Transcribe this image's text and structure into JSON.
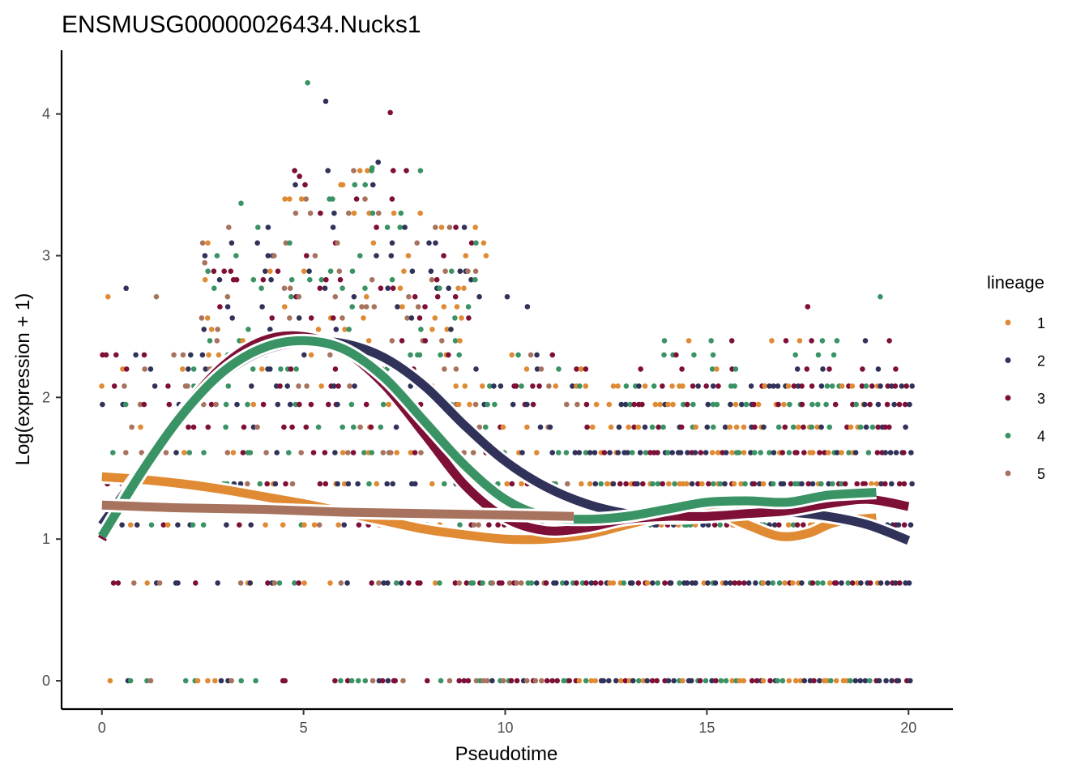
{
  "chart_data": {
    "type": "scatter",
    "title": "ENSMUSG00000026434.Nucks1",
    "xlabel": "Pseudotime",
    "ylabel": "Log(expression + 1)",
    "xlim": [
      -1,
      21.1
    ],
    "ylim": [
      -0.2,
      4.45
    ],
    "xticks": [
      0,
      5,
      10,
      15,
      20
    ],
    "yticks": [
      0,
      1,
      2,
      3,
      4
    ],
    "grid": false,
    "legend": {
      "title": "lineage",
      "position": "right",
      "entries": [
        {
          "label": "1",
          "color": "#E08A33"
        },
        {
          "label": "2",
          "color": "#31325A"
        },
        {
          "label": "3",
          "color": "#7E0F36"
        },
        {
          "label": "4",
          "color": "#3A9364"
        },
        {
          "label": "5",
          "color": "#A7735E"
        }
      ]
    },
    "point_levels": [
      0,
      0.69,
      1.1,
      1.39,
      1.61,
      1.79,
      1.95,
      2.08,
      2.2,
      2.3,
      2.4,
      2.48,
      2.56,
      2.64,
      2.71,
      2.77,
      2.83,
      2.89,
      2.94,
      3.0,
      3.09,
      3.2,
      3.3,
      3.4,
      3.5,
      3.6
    ],
    "outlier_points": [
      {
        "x": 5.1,
        "y": 4.22,
        "lineage": "4"
      },
      {
        "x": 5.55,
        "y": 4.09,
        "lineage": "2"
      },
      {
        "x": 7.15,
        "y": 4.01,
        "lineage": "3"
      },
      {
        "x": 6.85,
        "y": 3.66,
        "lineage": "2"
      },
      {
        "x": 6.7,
        "y": 3.62,
        "lineage": "4"
      },
      {
        "x": 4.9,
        "y": 3.56,
        "lineage": "3"
      },
      {
        "x": 3.45,
        "y": 3.37,
        "lineage": "4"
      },
      {
        "x": 2.55,
        "y": 2.95,
        "lineage": "5"
      },
      {
        "x": 19.3,
        "y": 2.71,
        "lineage": "4"
      },
      {
        "x": 17.5,
        "y": 2.64,
        "lineage": "3"
      },
      {
        "x": 0.6,
        "y": 2.77,
        "lineage": "2"
      },
      {
        "x": 1.35,
        "y": 2.71,
        "lineage": "5"
      },
      {
        "x": 0.15,
        "y": 2.71,
        "lineage": "1"
      },
      {
        "x": 10.05,
        "y": 2.71,
        "lineage": "2"
      },
      {
        "x": 10.55,
        "y": 2.64,
        "lineage": "2"
      }
    ],
    "series": [
      {
        "name": "1",
        "color": "#E08A33",
        "x": [
          0,
          1,
          2,
          3,
          4,
          5,
          6,
          7,
          8,
          9,
          10,
          11,
          12,
          13,
          14,
          15,
          16,
          16.8,
          17.5,
          18.2,
          19.2
        ],
        "y": [
          1.44,
          1.42,
          1.39,
          1.35,
          1.3,
          1.25,
          1.19,
          1.13,
          1.07,
          1.03,
          1.0,
          1.0,
          1.03,
          1.1,
          1.17,
          1.21,
          1.1,
          1.02,
          1.04,
          1.12,
          1.15
        ]
      },
      {
        "name": "2",
        "color": "#31325A",
        "x": [
          0,
          1,
          2,
          3,
          4,
          5,
          6,
          7,
          8,
          9,
          10,
          11,
          12,
          13,
          14,
          15,
          16,
          17,
          18,
          19,
          20
        ],
        "y": [
          1.1,
          1.5,
          1.88,
          2.16,
          2.33,
          2.39,
          2.38,
          2.28,
          2.08,
          1.8,
          1.55,
          1.37,
          1.25,
          1.18,
          1.15,
          1.16,
          1.19,
          1.19,
          1.16,
          1.1,
          0.99
        ]
      },
      {
        "name": "3",
        "color": "#7E0F36",
        "x": [
          0,
          1,
          2,
          3,
          4,
          5,
          6,
          7,
          8,
          9,
          10,
          11,
          12,
          13,
          14,
          15,
          16,
          17,
          18,
          19,
          20
        ],
        "y": [
          1.0,
          1.5,
          1.9,
          2.22,
          2.4,
          2.43,
          2.33,
          2.09,
          1.74,
          1.38,
          1.15,
          1.06,
          1.08,
          1.14,
          1.16,
          1.16,
          1.18,
          1.2,
          1.25,
          1.28,
          1.23
        ]
      },
      {
        "name": "4",
        "color": "#3A9364",
        "x": [
          0,
          1,
          2,
          3,
          4,
          5,
          6,
          7,
          8,
          9,
          10,
          11,
          12,
          13,
          14,
          15,
          16,
          17,
          18,
          19.2
        ],
        "y": [
          1.02,
          1.48,
          1.88,
          2.18,
          2.35,
          2.4,
          2.34,
          2.14,
          1.83,
          1.52,
          1.28,
          1.16,
          1.14,
          1.16,
          1.21,
          1.26,
          1.27,
          1.26,
          1.31,
          1.33
        ]
      },
      {
        "name": "5",
        "color": "#A7735E",
        "x": [
          0,
          2,
          4,
          6,
          8,
          10,
          11.7
        ],
        "y": [
          1.24,
          1.22,
          1.21,
          1.19,
          1.18,
          1.17,
          1.16
        ]
      }
    ]
  }
}
